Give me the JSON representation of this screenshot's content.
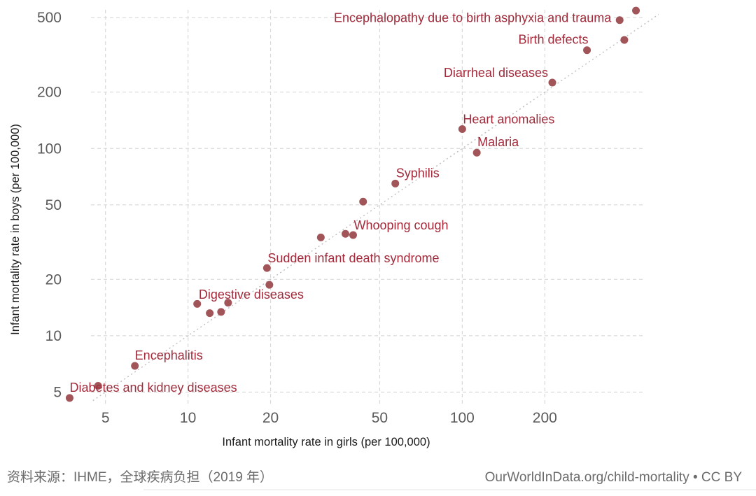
{
  "chart_data": {
    "type": "scatter",
    "title": "",
    "xlabel": "Infant mortality rate in girls (per 100,000)",
    "ylabel": "Infant mortality rate in boys (per 100,000)",
    "xscale": "log",
    "yscale": "log",
    "xlim": [
      3.5,
      460
    ],
    "ylim": [
      4.3,
      560
    ],
    "xticks": [
      {
        "value": 5,
        "label": "5"
      },
      {
        "value": 10,
        "label": "10"
      },
      {
        "value": 20,
        "label": "20"
      },
      {
        "value": 50,
        "label": "50"
      },
      {
        "value": 100,
        "label": "100"
      },
      {
        "value": 200,
        "label": "200"
      }
    ],
    "yticks": [
      {
        "value": 5,
        "label": "5"
      },
      {
        "value": 10,
        "label": "10"
      },
      {
        "value": 20,
        "label": "20"
      },
      {
        "value": 50,
        "label": "50"
      },
      {
        "value": 100,
        "label": "100"
      },
      {
        "value": 200,
        "label": "200"
      },
      {
        "value": 500,
        "label": "500"
      }
    ],
    "reference_line": "y = x",
    "grid": true,
    "point_color": "#a25559",
    "label_color": "#a12b3b",
    "points": [
      {
        "x": 430,
        "y": 545,
        "label": ""
      },
      {
        "x": 375,
        "y": 485,
        "label": "Encephalopathy due to birth asphyxia and trauma"
      },
      {
        "x": 390,
        "y": 380,
        "label": ""
      },
      {
        "x": 285,
        "y": 335,
        "label": "Birth defects"
      },
      {
        "x": 213,
        "y": 225,
        "label": "Diarrheal diseases"
      },
      {
        "x": 100,
        "y": 127,
        "label": "Heart anomalies"
      },
      {
        "x": 113,
        "y": 95,
        "label": "Malaria"
      },
      {
        "x": 57,
        "y": 65,
        "label": "Syphilis"
      },
      {
        "x": 43.5,
        "y": 52,
        "label": ""
      },
      {
        "x": 37.5,
        "y": 35,
        "label": ""
      },
      {
        "x": 40,
        "y": 34.5,
        "label": "Whooping cough"
      },
      {
        "x": 30.5,
        "y": 33.5,
        "label": ""
      },
      {
        "x": 19.4,
        "y": 23,
        "label": "Sudden infant death syndrome"
      },
      {
        "x": 19.8,
        "y": 18.7,
        "label": ""
      },
      {
        "x": 10.8,
        "y": 14.8,
        "label": ""
      },
      {
        "x": 14,
        "y": 15,
        "label": "Digestive diseases"
      },
      {
        "x": 12,
        "y": 13.2,
        "label": ""
      },
      {
        "x": 13.2,
        "y": 13.4,
        "label": ""
      },
      {
        "x": 6.4,
        "y": 6.9,
        "label": "Encephalitis"
      },
      {
        "x": 4.7,
        "y": 5.4,
        "label": ""
      },
      {
        "x": 3.7,
        "y": 4.65,
        "label": "Diabetes and kidney diseases"
      }
    ]
  },
  "footer": {
    "source": "资料来源：IHME，全球疾病负担（2019 年）",
    "credit": "OurWorldInData.org/child-mortality • CC BY"
  }
}
